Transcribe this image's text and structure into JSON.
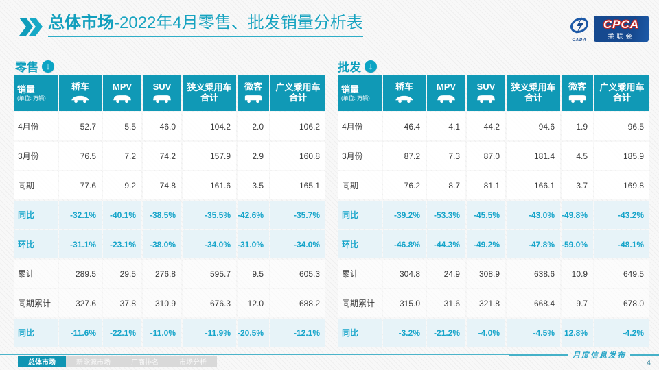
{
  "header": {
    "title_bold": "总体市场",
    "title_rest": "-2022年4月零售、批发销量分析表",
    "logo": {
      "cpca": "CPCA",
      "sub": "乘联会",
      "swoosh_caption": "CADA"
    }
  },
  "columns": [
    {
      "line1": "销量",
      "sub": "(单位: 万辆)",
      "icon": null,
      "first": true
    },
    {
      "line1": "轿车",
      "icon": "sedan-icon"
    },
    {
      "line1": "MPV",
      "icon": "mpv-icon"
    },
    {
      "line1": "SUV",
      "icon": "suv-icon"
    },
    {
      "line1": "狭义乘用车",
      "line2": "合计",
      "icon": null
    },
    {
      "line1": "微客",
      "icon": "microvan-icon"
    },
    {
      "line1": "广义乘用车",
      "line2": "合计",
      "icon": null
    }
  ],
  "tables": [
    {
      "name": "零售",
      "rows": [
        {
          "label": "4月份",
          "type": "plain",
          "values": [
            "52.7",
            "5.5",
            "46.0",
            "104.2",
            "2.0",
            "106.2"
          ]
        },
        {
          "label": "3月份",
          "type": "plain",
          "values": [
            "76.5",
            "7.2",
            "74.2",
            "157.9",
            "2.9",
            "160.8"
          ]
        },
        {
          "label": "同期",
          "type": "plain",
          "values": [
            "77.6",
            "9.2",
            "74.8",
            "161.6",
            "3.5",
            "165.1"
          ]
        },
        {
          "label": "同比",
          "type": "pct",
          "values": [
            "-32.1%",
            "-40.1%",
            "-38.5%",
            "-35.5%",
            "-42.6%",
            "-35.7%"
          ]
        },
        {
          "label": "环比",
          "type": "pct",
          "values": [
            "-31.1%",
            "-23.1%",
            "-38.0%",
            "-34.0%",
            "-31.0%",
            "-34.0%"
          ]
        },
        {
          "label": "累计",
          "type": "hatch",
          "values": [
            "289.5",
            "29.5",
            "276.8",
            "595.7",
            "9.5",
            "605.3"
          ]
        },
        {
          "label": "同期累计",
          "type": "hatch",
          "values": [
            "327.6",
            "37.8",
            "310.9",
            "676.3",
            "12.0",
            "688.2"
          ]
        },
        {
          "label": "同比",
          "type": "pct",
          "values": [
            "-11.6%",
            "-22.1%",
            "-11.0%",
            "-11.9%",
            "-20.5%",
            "-12.1%"
          ]
        }
      ]
    },
    {
      "name": "批发",
      "rows": [
        {
          "label": "4月份",
          "type": "plain",
          "values": [
            "46.4",
            "4.1",
            "44.2",
            "94.6",
            "1.9",
            "96.5"
          ]
        },
        {
          "label": "3月份",
          "type": "plain",
          "values": [
            "87.2",
            "7.3",
            "87.0",
            "181.4",
            "4.5",
            "185.9"
          ]
        },
        {
          "label": "同期",
          "type": "plain",
          "values": [
            "76.2",
            "8.7",
            "81.1",
            "166.1",
            "3.7",
            "169.8"
          ]
        },
        {
          "label": "同比",
          "type": "pct",
          "values": [
            "-39.2%",
            "-53.3%",
            "-45.5%",
            "-43.0%",
            "-49.8%",
            "-43.2%"
          ]
        },
        {
          "label": "环比",
          "type": "pct",
          "values": [
            "-46.8%",
            "-44.3%",
            "-49.2%",
            "-47.8%",
            "-59.0%",
            "-48.1%"
          ]
        },
        {
          "label": "累计",
          "type": "hatch",
          "values": [
            "304.8",
            "24.9",
            "308.9",
            "638.6",
            "10.9",
            "649.5"
          ]
        },
        {
          "label": "同期累计",
          "type": "hatch",
          "values": [
            "315.0",
            "31.6",
            "321.8",
            "668.4",
            "9.7",
            "678.0"
          ]
        },
        {
          "label": "同比",
          "type": "pct",
          "values": [
            "-3.2%",
            "-21.2%",
            "-4.0%",
            "-4.5%",
            "12.8%",
            "-4.2%"
          ]
        }
      ]
    }
  ],
  "footer": {
    "tabs": [
      {
        "label": "总体市场",
        "active": true
      },
      {
        "label": "新能源市场",
        "active": false
      },
      {
        "label": "厂商排名",
        "active": false
      },
      {
        "label": "市场分析",
        "active": false
      }
    ],
    "release_note": "月度信息发布",
    "page_number": "4"
  },
  "colors": {
    "accent_teal": "#1099b6",
    "pct_text": "#17a5ca",
    "pct_row_bg": "#e7f3f8",
    "logo_blue": "#16498f",
    "logo_red": "#c02424"
  }
}
